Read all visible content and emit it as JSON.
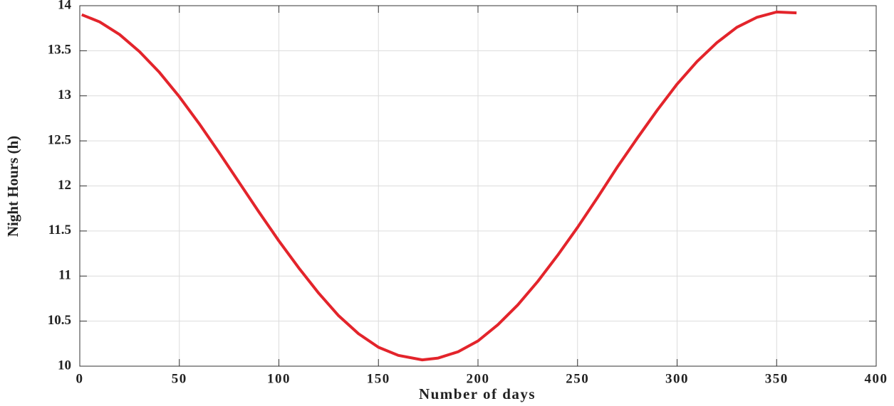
{
  "chart_data": {
    "type": "line",
    "xlabel": "Number of days",
    "ylabel": "Night Hours (h)",
    "x": [
      1,
      10,
      20,
      30,
      40,
      50,
      60,
      70,
      80,
      90,
      100,
      110,
      120,
      130,
      140,
      150,
      160,
      172,
      180,
      190,
      200,
      210,
      220,
      230,
      240,
      250,
      260,
      270,
      280,
      290,
      300,
      310,
      320,
      330,
      340,
      350,
      360
    ],
    "series": [
      {
        "color": "#e3242b",
        "values": [
          13.9,
          13.82,
          13.68,
          13.49,
          13.26,
          12.99,
          12.69,
          12.37,
          12.04,
          11.71,
          11.39,
          11.09,
          10.81,
          10.56,
          10.36,
          10.21,
          10.12,
          10.07,
          10.09,
          10.16,
          10.28,
          10.46,
          10.68,
          10.94,
          11.23,
          11.54,
          11.87,
          12.21,
          12.53,
          12.84,
          13.13,
          13.38,
          13.59,
          13.76,
          13.87,
          13.93,
          13.92
        ]
      }
    ],
    "xlim": [
      0,
      400
    ],
    "xticks": [
      0,
      50,
      100,
      150,
      200,
      250,
      300,
      350,
      400
    ],
    "ylim": [
      10,
      14
    ],
    "yticks": [
      10,
      10.5,
      11,
      11.5,
      12,
      12.5,
      13,
      13.5,
      14
    ],
    "grid": true
  }
}
